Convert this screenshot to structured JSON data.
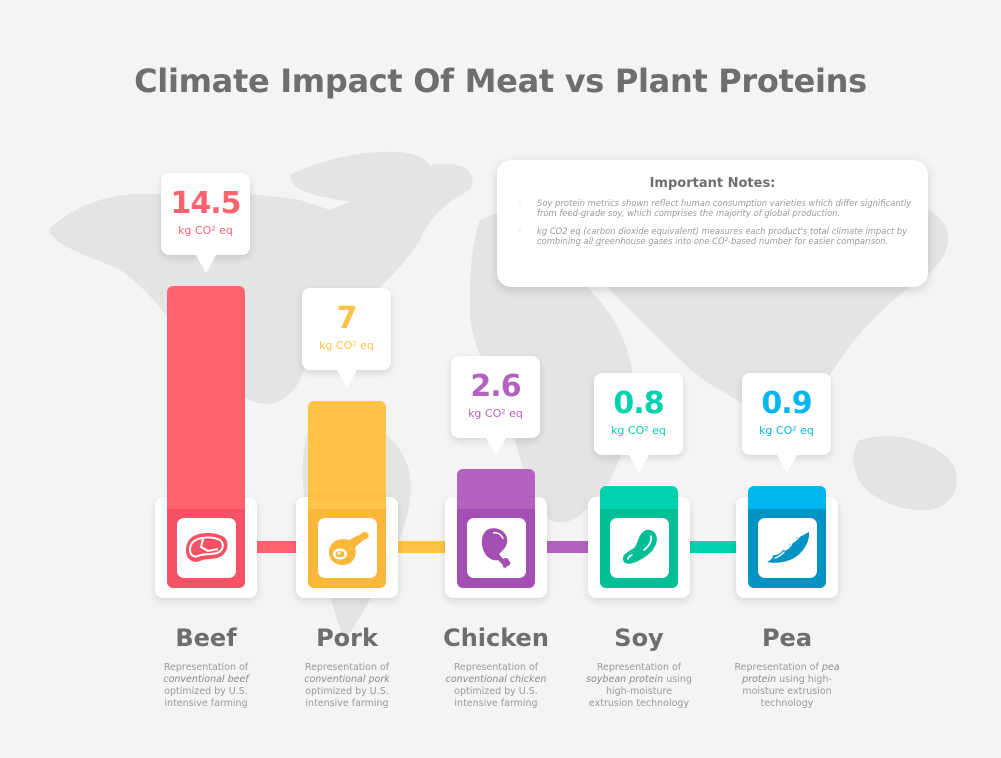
{
  "title": "Climate Impact Of Meat vs Plant Proteins",
  "notes": {
    "title": "Important Notes:",
    "items": [
      "Soy protein metrics shown reflect human consumption varieties which differ significantly from feed-grade soy, which comprises the majority of global production.",
      "kg CO2 eq (carbon dioxide equivalent) measures each product's total climate impact by combining all greenhouse gases into one CO²-based number for easier comparison."
    ]
  },
  "colors": {
    "beef": "#ff6370",
    "beef_dark": "#f55265",
    "pork": "#ffc347",
    "pork_dark": "#f9b83a",
    "chicken": "#b462c0",
    "chicken_dark": "#a44fb3",
    "soy": "#00d2ad",
    "soy_dark": "#00bf97",
    "pea": "#00b6ee",
    "pea_dark": "#0093c4",
    "text_dark": "#6e6e6e",
    "text_light": "#9a9a9a",
    "background": "#f4f4f4"
  },
  "chart_data": {
    "type": "bar",
    "title": "Climate Impact Of Meat vs Plant Proteins",
    "xlabel": "",
    "ylabel": "kg CO² eq",
    "unit": "kg CO² eq",
    "categories": [
      "Beef",
      "Pork",
      "Chicken",
      "Soy",
      "Pea"
    ],
    "values": [
      14.5,
      7,
      2.6,
      0.8,
      0.9
    ],
    "value_labels": [
      "14.5",
      "7",
      "2.6",
      "0.8",
      "0.9"
    ],
    "icons": [
      "steak-icon",
      "ham-leg-icon",
      "chicken-drumstick-icon",
      "soybean-icon",
      "pea-pod-icon"
    ],
    "descriptions": [
      {
        "pre": "Representation of",
        "em": "conventional beef",
        "post": "optimized by U.S. intensive farming"
      },
      {
        "pre": "Representation of",
        "em": "conventional pork",
        "post": "optimized by U.S. intensive farming"
      },
      {
        "pre": "Representation of",
        "em": "conventional chicken",
        "post": "optimized by U.S. intensive farming"
      },
      {
        "pre": "Representation of",
        "em": "soybean protein",
        "post": "using high-moisture extrusion technology"
      },
      {
        "pre": "Representation of",
        "em": "pea protein",
        "post": "using high-moisture extrusion technology"
      }
    ],
    "grid": false,
    "legend": "none"
  }
}
